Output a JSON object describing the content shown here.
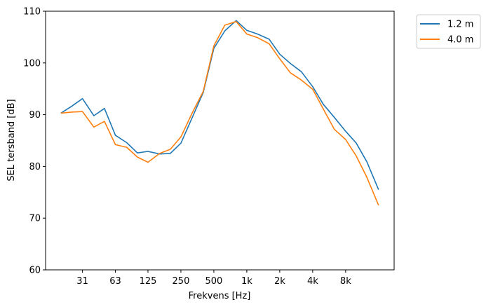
{
  "chart_data": {
    "type": "line",
    "xlabel": "Frekvens [Hz]",
    "ylabel": "SEL tersband [dB]",
    "x_scale": "log",
    "x": [
      20,
      25,
      31.5,
      40,
      50,
      63,
      80,
      100,
      125,
      160,
      200,
      250,
      315,
      400,
      500,
      630,
      800,
      1000,
      1250,
      1600,
      2000,
      2500,
      3150,
      4000,
      5000,
      6300,
      8000,
      10000,
      12500,
      16000
    ],
    "x_ticks": [
      31.5,
      63,
      125,
      250,
      500,
      1000,
      2000,
      4000,
      8000
    ],
    "x_tick_labels": [
      "31",
      "63",
      "125",
      "250",
      "500",
      "1k",
      "2k",
      "4k",
      "8k"
    ],
    "ylim": [
      60,
      110
    ],
    "y_ticks": [
      60,
      70,
      80,
      90,
      100,
      110
    ],
    "legend_position": "outside-top-right",
    "series": [
      {
        "name": "1.2 m",
        "color": "#1f77b4",
        "values": [
          90.3,
          91.6,
          93.1,
          89.8,
          91.2,
          86.0,
          84.6,
          82.6,
          82.9,
          82.4,
          82.5,
          84.5,
          89.3,
          94.3,
          102.8,
          106.2,
          108.2,
          106.3,
          105.6,
          104.6,
          101.7,
          99.9,
          98.3,
          95.4,
          92.0,
          89.5,
          86.8,
          84.5,
          80.9,
          75.5
        ]
      },
      {
        "name": "4.0 m",
        "color": "#ff7f0e",
        "values": [
          90.3,
          90.5,
          90.6,
          87.6,
          88.7,
          84.2,
          83.7,
          81.8,
          80.8,
          82.5,
          83.3,
          85.7,
          90.2,
          94.5,
          103.3,
          107.3,
          108.0,
          105.6,
          104.9,
          103.7,
          100.8,
          98.1,
          96.7,
          94.9,
          91.1,
          87.2,
          85.2,
          82.0,
          77.9,
          72.5
        ]
      }
    ]
  }
}
